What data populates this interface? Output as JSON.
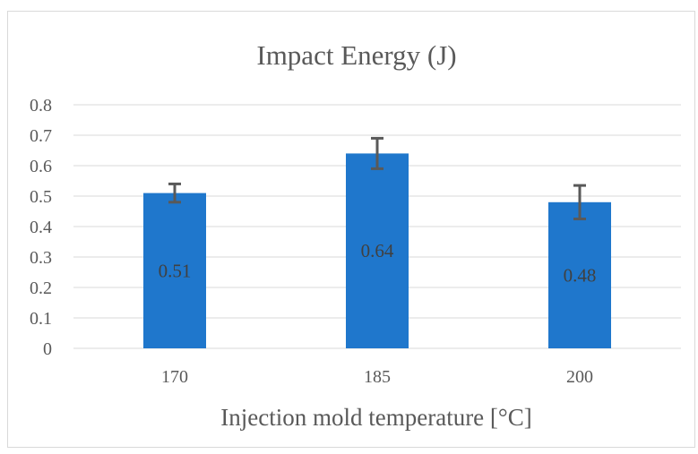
{
  "chart_data": {
    "type": "bar",
    "title": "Impact Energy (J)",
    "xlabel": "Injection mold temperature [°C]",
    "ylabel": "",
    "categories": [
      "170",
      "185",
      "200"
    ],
    "values": [
      0.51,
      0.64,
      0.48
    ],
    "data_labels": [
      "0.51",
      "0.64",
      "0.48"
    ],
    "error_upper": [
      0.03,
      0.05,
      0.055
    ],
    "error_lower": [
      0.03,
      0.05,
      0.055
    ],
    "ylim": [
      0,
      0.8
    ],
    "yticks": [
      "0",
      "0.1",
      "0.2",
      "0.3",
      "0.4",
      "0.5",
      "0.6",
      "0.7",
      "0.8"
    ],
    "grid": true,
    "legend": "none",
    "colors": {
      "bar": "#1f77cc",
      "error_bar": "#595959",
      "grid": "#d9d9d9"
    }
  }
}
